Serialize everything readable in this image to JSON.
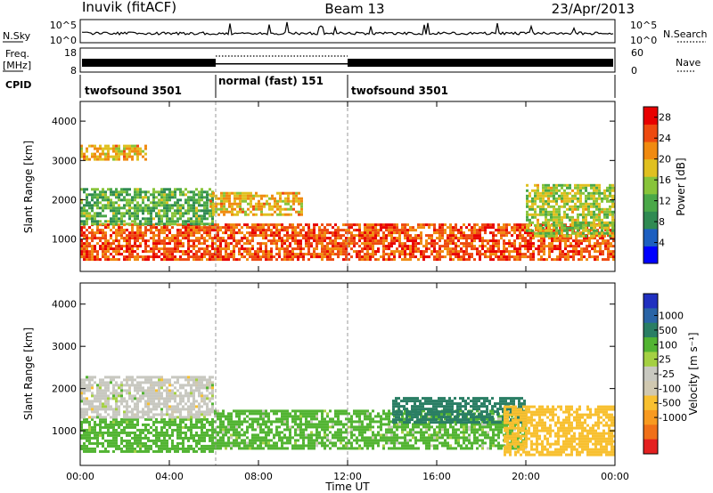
{
  "header": {
    "station": "Inuvik (fitACF)",
    "beam": "Beam 13",
    "date": "23/Apr/2013"
  },
  "status_panels": {
    "nsky_label": "N.Sky",
    "nsky_ticks": [
      "10^5",
      "10^0"
    ],
    "nsearch_label": "N.Search",
    "freq_label_line1": "Freq.",
    "freq_label_line2": "[MHz]",
    "freq_ticks": [
      "18",
      "8"
    ],
    "nave_label": "Nave",
    "nave_ticks": [
      "60",
      "0"
    ],
    "cpid_label": "CPID",
    "cpid_segments": [
      {
        "label": "twofsound 3501",
        "start_hr": 0,
        "end_hr": 6
      },
      {
        "label": "normal (fast) 151",
        "start_hr": 6,
        "end_hr": 12
      },
      {
        "label": "twofsound 3501",
        "start_hr": 12,
        "end_hr": 24
      }
    ]
  },
  "colors": {
    "power_scale": [
      "#0000ff",
      "#1d5fc0",
      "#2f8a52",
      "#4aa848",
      "#88c43a",
      "#e0c020",
      "#f08a10",
      "#ee4a10",
      "#e80000"
    ],
    "velocity_scale": [
      "#2030c0",
      "#2a64a6",
      "#2a7e64",
      "#52b432",
      "#a4d042",
      "#c8c8c0",
      "#d0c8b0",
      "#f8c030",
      "#f89a20",
      "#f07018",
      "#e42020"
    ]
  },
  "chart_data": [
    {
      "type": "heatmap",
      "name": "power",
      "ylabel": "Slant Range [km]",
      "xlabel": "Time UT",
      "x_ticks": [
        "00:00",
        "04:00",
        "08:00",
        "12:00",
        "16:00",
        "20:00",
        "00:00"
      ],
      "y_ticks": [
        1000,
        2000,
        3000,
        4000
      ],
      "xlim_hr": [
        0,
        24
      ],
      "ylim_km": [
        180,
        4500
      ],
      "colorbar_label": "Power [dB]",
      "colorbar_ticks": [
        4,
        8,
        12,
        16,
        20,
        24,
        28
      ],
      "colorbar_range": [
        0,
        30
      ],
      "bands": [
        {
          "start_hr": 0,
          "end_hr": 24,
          "range_km": [
            500,
            1400
          ],
          "level": 26
        },
        {
          "start_hr": 0,
          "end_hr": 6,
          "range_km": [
            1400,
            2300
          ],
          "level": 12
        },
        {
          "start_hr": 0,
          "end_hr": 3,
          "range_km": [
            3000,
            3400
          ],
          "level": 20
        },
        {
          "start_hr": 5.8,
          "end_hr": 10,
          "range_km": [
            1600,
            2200
          ],
          "level": 20
        },
        {
          "start_hr": 20,
          "end_hr": 24,
          "range_km": [
            1100,
            2400
          ],
          "level": 16
        }
      ]
    },
    {
      "type": "heatmap",
      "name": "velocity",
      "ylabel": "Slant Range [km]",
      "xlabel": "Time UT",
      "x_ticks": [
        "00:00",
        "04:00",
        "08:00",
        "12:00",
        "16:00",
        "20:00",
        "00:00"
      ],
      "y_ticks": [
        1000,
        2000,
        3000,
        4000
      ],
      "xlim_hr": [
        0,
        24
      ],
      "ylim_km": [
        180,
        4500
      ],
      "colorbar_label": "Velocity [m s⁻¹]",
      "colorbar_ticks": [
        1000,
        500,
        100,
        25,
        -25,
        -100,
        -500,
        -1000
      ],
      "bands": [
        {
          "start_hr": 0,
          "end_hr": 6,
          "range_km": [
            500,
            1300
          ],
          "velocity": 200
        },
        {
          "start_hr": 0,
          "end_hr": 6,
          "range_km": [
            1300,
            2300
          ],
          "velocity": 0
        },
        {
          "start_hr": 6,
          "end_hr": 20,
          "range_km": [
            600,
            1500
          ],
          "velocity": 100
        },
        {
          "start_hr": 14,
          "end_hr": 20,
          "range_km": [
            1200,
            1800
          ],
          "velocity": 800
        },
        {
          "start_hr": 19,
          "end_hr": 24,
          "range_km": [
            400,
            1600
          ],
          "velocity": -300
        }
      ]
    }
  ]
}
